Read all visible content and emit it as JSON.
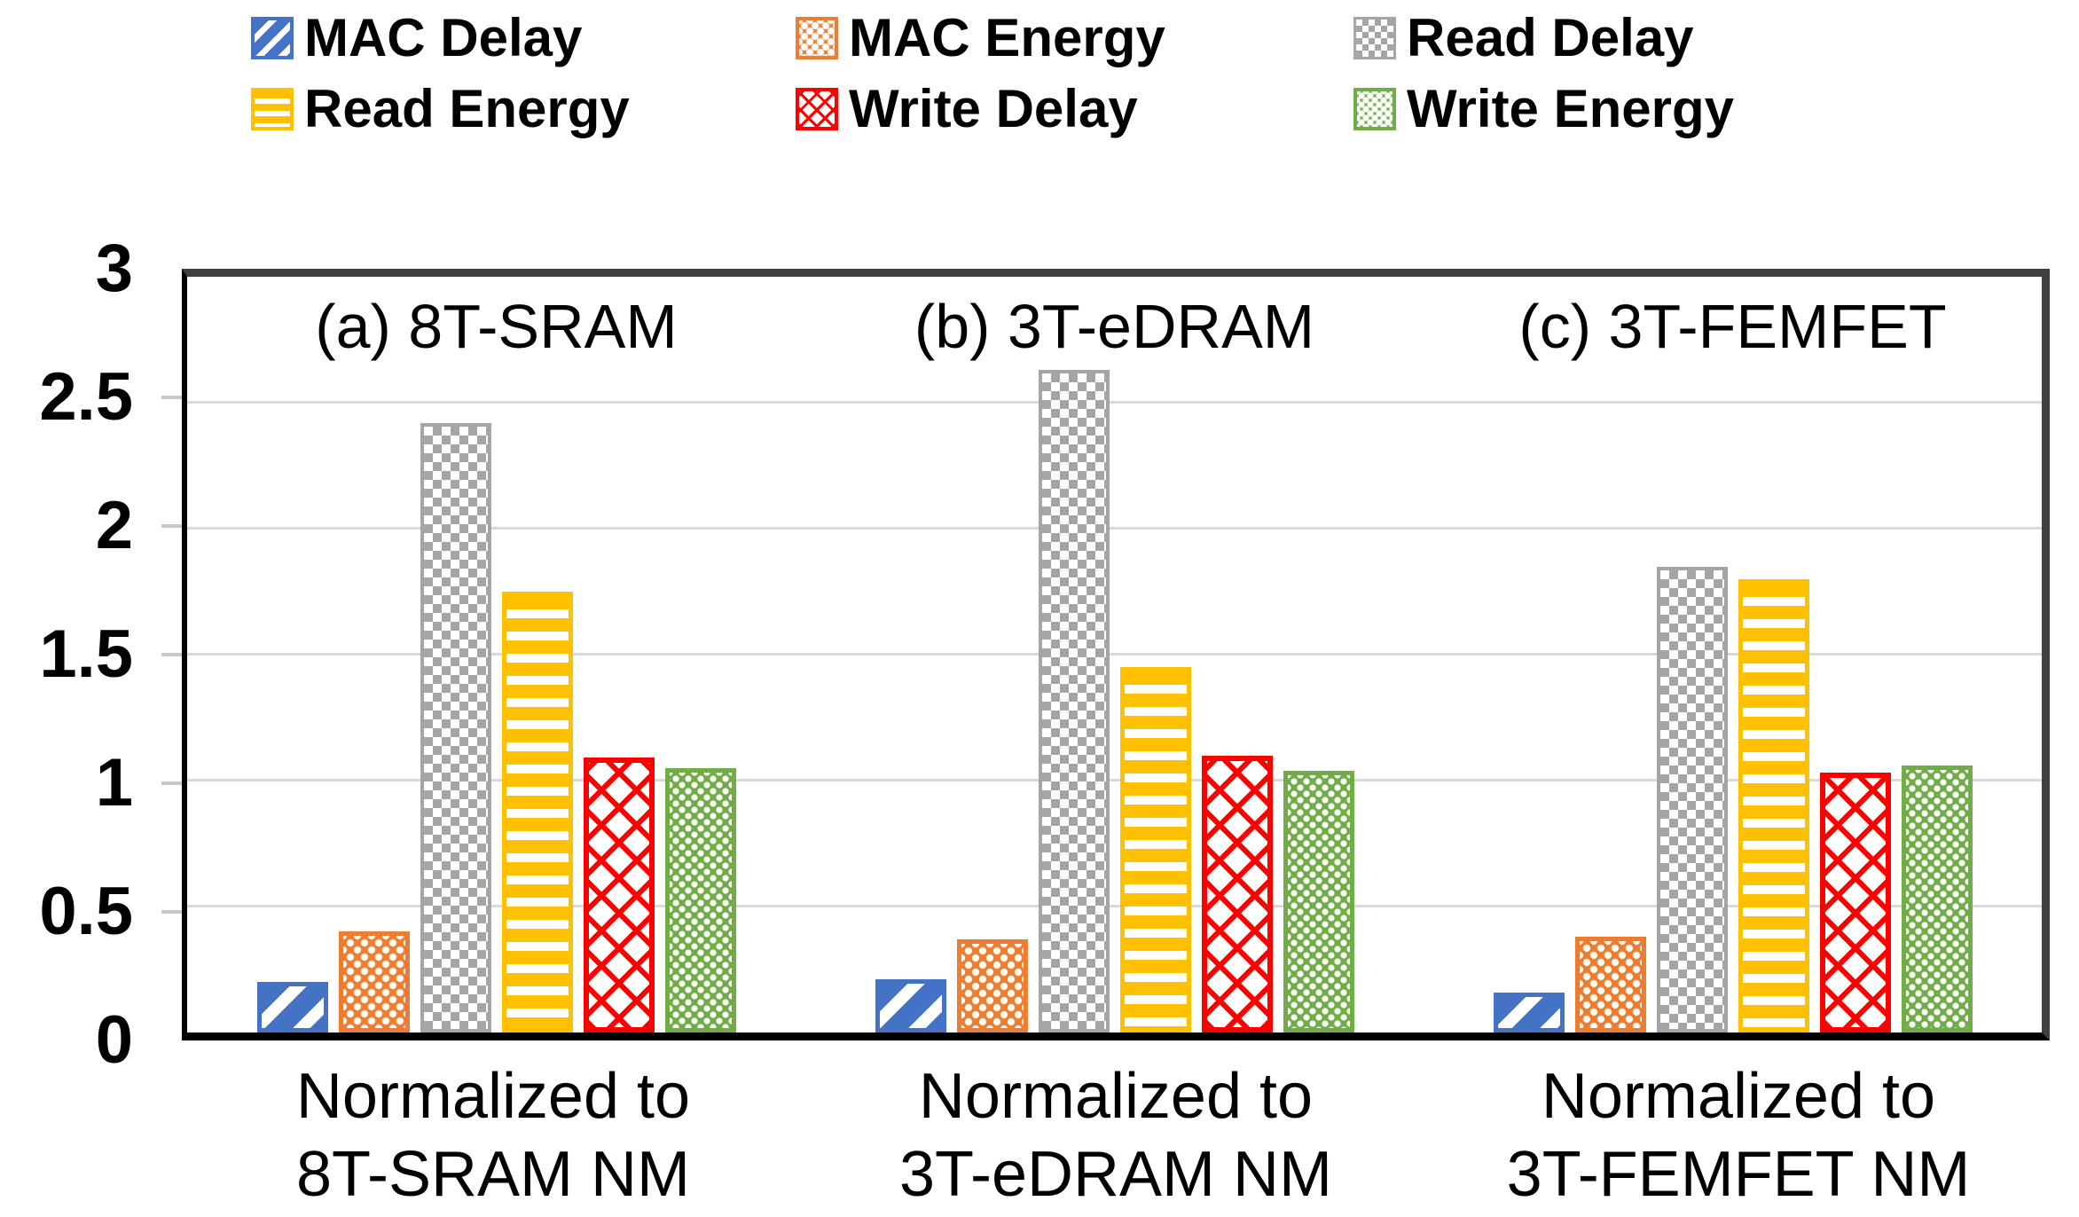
{
  "legend": {
    "items": [
      {
        "label": "MAC Delay",
        "color": "#4472C4",
        "pattern": "blue-diagonal-stripes"
      },
      {
        "label": "MAC Energy",
        "color": "#ED7D31",
        "pattern": "orange-diamond-dots"
      },
      {
        "label": "Read Delay",
        "color": "#A5A5A5",
        "pattern": "gray-checkerboard"
      },
      {
        "label": "Read Energy",
        "color": "#FFC000",
        "pattern": "yellow-horizontal-stripes"
      },
      {
        "label": "Write Delay",
        "color": "#FF0000",
        "pattern": "red-crosshatch"
      },
      {
        "label": "Write Energy",
        "color": "#70AD47",
        "pattern": "green-dots"
      }
    ]
  },
  "chart_data": {
    "type": "bar",
    "ylim": [
      0,
      3
    ],
    "y_ticks": [
      "3",
      "2.5",
      "2",
      "1.5",
      "1",
      "0.5",
      "0"
    ],
    "grid": true,
    "legend_position": "top",
    "gridline_color": "#d9d9d9",
    "series_names": [
      "MAC Delay",
      "MAC Energy",
      "Read Delay",
      "Read Energy",
      "Write Delay",
      "Write Energy"
    ],
    "groups": [
      {
        "panel_label": "(a) 8T-SRAM",
        "category_line1": "Normalized to",
        "category_line2": "8T-SRAM NM",
        "values": [
          0.2,
          0.4,
          2.42,
          1.75,
          1.09,
          1.05
        ]
      },
      {
        "panel_label": "(b) 3T-eDRAM",
        "category_line1": "Normalized to",
        "category_line2": "3T-eDRAM NM",
        "values": [
          0.21,
          0.37,
          2.63,
          1.45,
          1.1,
          1.04
        ]
      },
      {
        "panel_label": "(c) 3T-FEMFET",
        "category_line1": "Normalized to",
        "category_line2": "3T-FEMFET NM",
        "values": [
          0.16,
          0.38,
          1.85,
          1.8,
          1.03,
          1.06
        ]
      }
    ]
  }
}
